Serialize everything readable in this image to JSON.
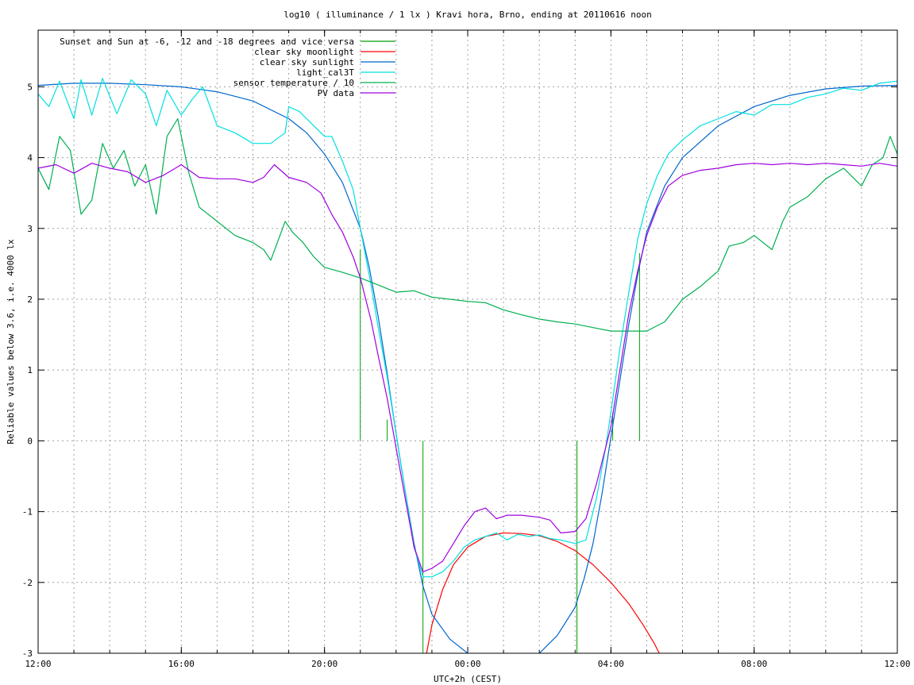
{
  "chart_data": {
    "type": "line",
    "title": "log10 ( illuminance / 1 lx ) Kravi hora, Brno, ending at 20110616 noon",
    "xlabel": "UTC+2h (CEST)",
    "ylabel": "Reliable values below 3.6, i.e. 4000 lx",
    "x_unit": "hours since 12:00 (2011-06-15)",
    "xlim": [
      0,
      24
    ],
    "ylim": [
      -3,
      5.8
    ],
    "x_ticks": [
      {
        "v": 0,
        "label": "12:00"
      },
      {
        "v": 4,
        "label": "16:00"
      },
      {
        "v": 8,
        "label": "20:00"
      },
      {
        "v": 12,
        "label": "00:00"
      },
      {
        "v": 16,
        "label": "04:00"
      },
      {
        "v": 20,
        "label": "08:00"
      },
      {
        "v": 24,
        "label": "12:00"
      }
    ],
    "y_ticks": [
      {
        "v": 5,
        "label": "5"
      },
      {
        "v": 4,
        "label": "4"
      },
      {
        "v": 3,
        "label": "3"
      },
      {
        "v": 2,
        "label": "2"
      },
      {
        "v": 1,
        "label": "1"
      },
      {
        "v": 0,
        "label": "0"
      },
      {
        "v": -1,
        "label": "-1"
      },
      {
        "v": -2,
        "label": "-2"
      },
      {
        "v": -3,
        "label": "-3"
      }
    ],
    "x_minor_step": 1,
    "grid": true,
    "legend_position": "top-left",
    "series": [
      {
        "name": "Sunset and Sun at -6, -12 and -18 degrees and vice versa",
        "color": "#00a000",
        "kind": "vlines",
        "lines": [
          {
            "x": 9.0,
            "y0": 0,
            "y1": 2.7
          },
          {
            "x": 9.75,
            "y0": 0,
            "y1": 0.3
          },
          {
            "x": 10.75,
            "y0": -3,
            "y1": 0
          },
          {
            "x": 15.05,
            "y0": -3,
            "y1": 0
          },
          {
            "x": 16.05,
            "y0": 0,
            "y1": 0.4
          },
          {
            "x": 16.8,
            "y0": 0,
            "y1": 2.65
          }
        ]
      },
      {
        "name": "clear sky moonlight",
        "color": "#ff0000",
        "points": [
          [
            10.85,
            -3.0
          ],
          [
            11.0,
            -2.6
          ],
          [
            11.3,
            -2.1
          ],
          [
            11.6,
            -1.75
          ],
          [
            12.0,
            -1.5
          ],
          [
            12.5,
            -1.35
          ],
          [
            13.0,
            -1.3
          ],
          [
            13.5,
            -1.31
          ],
          [
            14.0,
            -1.34
          ],
          [
            14.5,
            -1.42
          ],
          [
            15.0,
            -1.55
          ],
          [
            15.5,
            -1.75
          ],
          [
            16.0,
            -2.0
          ],
          [
            16.5,
            -2.3
          ],
          [
            16.9,
            -2.6
          ],
          [
            17.2,
            -2.85
          ],
          [
            17.35,
            -3.0
          ]
        ]
      },
      {
        "name": "clear sky sunlight",
        "color": "#0066cc",
        "points": [
          [
            0,
            5.02
          ],
          [
            1,
            5.05
          ],
          [
            2,
            5.05
          ],
          [
            3,
            5.03
          ],
          [
            4,
            5.0
          ],
          [
            5,
            4.93
          ],
          [
            6,
            4.8
          ],
          [
            7,
            4.55
          ],
          [
            7.5,
            4.35
          ],
          [
            8,
            4.05
          ],
          [
            8.5,
            3.65
          ],
          [
            9,
            3.0
          ],
          [
            9.25,
            2.45
          ],
          [
            9.5,
            1.75
          ],
          [
            9.75,
            0.95
          ],
          [
            10,
            0.1
          ],
          [
            10.25,
            -0.7
          ],
          [
            10.5,
            -1.45
          ],
          [
            10.75,
            -2.05
          ],
          [
            11,
            -2.45
          ],
          [
            11.5,
            -2.8
          ],
          [
            12,
            -3.0
          ],
          [
            12.5,
            -3.15
          ],
          [
            13,
            -3.2
          ],
          [
            13.5,
            -3.15
          ],
          [
            14,
            -3.0
          ],
          [
            14.5,
            -2.75
          ],
          [
            15,
            -2.35
          ],
          [
            15.25,
            -1.95
          ],
          [
            15.5,
            -1.45
          ],
          [
            15.75,
            -0.75
          ],
          [
            16,
            0.05
          ],
          [
            16.25,
            0.85
          ],
          [
            16.5,
            1.65
          ],
          [
            16.75,
            2.35
          ],
          [
            17,
            2.95
          ],
          [
            17.5,
            3.6
          ],
          [
            18,
            4.0
          ],
          [
            19,
            4.45
          ],
          [
            20,
            4.72
          ],
          [
            21,
            4.88
          ],
          [
            22,
            4.97
          ],
          [
            23,
            5.01
          ],
          [
            24,
            5.02
          ]
        ]
      },
      {
        "name": "light_cal3T",
        "color": "#00e0e0",
        "points": [
          [
            0,
            4.9
          ],
          [
            0.3,
            4.72
          ],
          [
            0.6,
            5.08
          ],
          [
            1.0,
            4.55
          ],
          [
            1.2,
            5.1
          ],
          [
            1.5,
            4.6
          ],
          [
            1.8,
            5.12
          ],
          [
            2.2,
            4.62
          ],
          [
            2.6,
            5.1
          ],
          [
            3.0,
            4.9
          ],
          [
            3.3,
            4.45
          ],
          [
            3.6,
            4.95
          ],
          [
            4.0,
            4.6
          ],
          [
            4.3,
            4.82
          ],
          [
            4.6,
            5.0
          ],
          [
            5.0,
            4.45
          ],
          [
            5.5,
            4.35
          ],
          [
            6.0,
            4.2
          ],
          [
            6.5,
            4.2
          ],
          [
            6.9,
            4.35
          ],
          [
            7.0,
            4.72
          ],
          [
            7.3,
            4.65
          ],
          [
            7.7,
            4.45
          ],
          [
            8.0,
            4.3
          ],
          [
            8.2,
            4.3
          ],
          [
            8.5,
            3.95
          ],
          [
            8.8,
            3.55
          ],
          [
            9.0,
            3.0
          ],
          [
            9.3,
            2.2
          ],
          [
            9.5,
            1.6
          ],
          [
            9.75,
            0.9
          ],
          [
            10.0,
            0.1
          ],
          [
            10.25,
            -0.7
          ],
          [
            10.5,
            -1.5
          ],
          [
            10.75,
            -1.92
          ],
          [
            11.0,
            -1.92
          ],
          [
            11.3,
            -1.85
          ],
          [
            11.6,
            -1.7
          ],
          [
            11.9,
            -1.5
          ],
          [
            12.2,
            -1.4
          ],
          [
            12.5,
            -1.35
          ],
          [
            12.8,
            -1.3
          ],
          [
            13.1,
            -1.4
          ],
          [
            13.4,
            -1.32
          ],
          [
            13.7,
            -1.35
          ],
          [
            14.0,
            -1.33
          ],
          [
            14.3,
            -1.38
          ],
          [
            14.6,
            -1.4
          ],
          [
            15.0,
            -1.45
          ],
          [
            15.3,
            -1.4
          ],
          [
            15.6,
            -0.8
          ],
          [
            15.85,
            -0.1
          ],
          [
            16.0,
            0.4
          ],
          [
            16.25,
            1.3
          ],
          [
            16.5,
            2.1
          ],
          [
            16.75,
            2.85
          ],
          [
            17.0,
            3.35
          ],
          [
            17.3,
            3.75
          ],
          [
            17.6,
            4.05
          ],
          [
            18.0,
            4.25
          ],
          [
            18.5,
            4.45
          ],
          [
            19.0,
            4.55
          ],
          [
            19.5,
            4.65
          ],
          [
            20.0,
            4.6
          ],
          [
            20.5,
            4.75
          ],
          [
            21.0,
            4.75
          ],
          [
            21.5,
            4.85
          ],
          [
            22.0,
            4.9
          ],
          [
            22.5,
            4.98
          ],
          [
            23.0,
            4.95
          ],
          [
            23.5,
            5.05
          ],
          [
            24.0,
            5.08
          ]
        ]
      },
      {
        "name": "sensor temperature / 10",
        "color": "#00b050",
        "points": [
          [
            0,
            3.85
          ],
          [
            0.3,
            3.55
          ],
          [
            0.6,
            4.3
          ],
          [
            0.9,
            4.1
          ],
          [
            1.2,
            3.2
          ],
          [
            1.5,
            3.4
          ],
          [
            1.8,
            4.2
          ],
          [
            2.1,
            3.85
          ],
          [
            2.4,
            4.1
          ],
          [
            2.7,
            3.6
          ],
          [
            3.0,
            3.9
          ],
          [
            3.3,
            3.2
          ],
          [
            3.6,
            4.3
          ],
          [
            3.9,
            4.55
          ],
          [
            4.2,
            3.8
          ],
          [
            4.5,
            3.3
          ],
          [
            5.0,
            3.1
          ],
          [
            5.5,
            2.9
          ],
          [
            6.0,
            2.8
          ],
          [
            6.3,
            2.7
          ],
          [
            6.5,
            2.55
          ],
          [
            6.9,
            3.1
          ],
          [
            7.1,
            2.95
          ],
          [
            7.4,
            2.8
          ],
          [
            7.7,
            2.6
          ],
          [
            8.0,
            2.45
          ],
          [
            8.5,
            2.38
          ],
          [
            9.0,
            2.3
          ],
          [
            9.5,
            2.2
          ],
          [
            10.0,
            2.1
          ],
          [
            10.5,
            2.12
          ],
          [
            11.0,
            2.03
          ],
          [
            11.5,
            2.0
          ],
          [
            12.0,
            1.97
          ],
          [
            12.5,
            1.95
          ],
          [
            13.0,
            1.85
          ],
          [
            13.5,
            1.78
          ],
          [
            14.0,
            1.72
          ],
          [
            14.5,
            1.68
          ],
          [
            15.0,
            1.65
          ],
          [
            15.5,
            1.6
          ],
          [
            16.0,
            1.55
          ],
          [
            16.5,
            1.55
          ],
          [
            17.0,
            1.55
          ],
          [
            17.5,
            1.68
          ],
          [
            18.0,
            2.0
          ],
          [
            18.5,
            2.18
          ],
          [
            19.0,
            2.4
          ],
          [
            19.3,
            2.75
          ],
          [
            19.7,
            2.8
          ],
          [
            20.0,
            2.9
          ],
          [
            20.5,
            2.7
          ],
          [
            20.8,
            3.1
          ],
          [
            21.0,
            3.3
          ],
          [
            21.5,
            3.45
          ],
          [
            22.0,
            3.7
          ],
          [
            22.5,
            3.85
          ],
          [
            23.0,
            3.6
          ],
          [
            23.3,
            3.9
          ],
          [
            23.6,
            4.0
          ],
          [
            23.8,
            4.3
          ],
          [
            24.0,
            4.05
          ]
        ]
      },
      {
        "name": "PV data",
        "color": "#a000e0",
        "points": [
          [
            0,
            3.85
          ],
          [
            0.5,
            3.9
          ],
          [
            1.0,
            3.78
          ],
          [
            1.5,
            3.92
          ],
          [
            2.0,
            3.85
          ],
          [
            2.5,
            3.8
          ],
          [
            3.0,
            3.65
          ],
          [
            3.5,
            3.75
          ],
          [
            4.0,
            3.9
          ],
          [
            4.5,
            3.72
          ],
          [
            5.0,
            3.7
          ],
          [
            5.5,
            3.7
          ],
          [
            6.0,
            3.65
          ],
          [
            6.3,
            3.72
          ],
          [
            6.6,
            3.9
          ],
          [
            7.0,
            3.72
          ],
          [
            7.5,
            3.65
          ],
          [
            7.9,
            3.5
          ],
          [
            8.2,
            3.2
          ],
          [
            8.5,
            2.95
          ],
          [
            8.8,
            2.6
          ],
          [
            9.0,
            2.3
          ],
          [
            9.3,
            1.7
          ],
          [
            9.5,
            1.2
          ],
          [
            9.75,
            0.6
          ],
          [
            10.0,
            -0.1
          ],
          [
            10.25,
            -0.8
          ],
          [
            10.5,
            -1.5
          ],
          [
            10.75,
            -1.85
          ],
          [
            11.0,
            -1.8
          ],
          [
            11.3,
            -1.7
          ],
          [
            11.6,
            -1.45
          ],
          [
            11.9,
            -1.2
          ],
          [
            12.2,
            -1.0
          ],
          [
            12.5,
            -0.95
          ],
          [
            12.8,
            -1.1
          ],
          [
            13.1,
            -1.05
          ],
          [
            13.5,
            -1.05
          ],
          [
            14.0,
            -1.08
          ],
          [
            14.3,
            -1.12
          ],
          [
            14.6,
            -1.3
          ],
          [
            15.0,
            -1.28
          ],
          [
            15.3,
            -1.1
          ],
          [
            15.6,
            -0.6
          ],
          [
            15.85,
            -0.1
          ],
          [
            16.0,
            0.2
          ],
          [
            16.25,
            1.0
          ],
          [
            16.5,
            1.8
          ],
          [
            16.75,
            2.4
          ],
          [
            17.0,
            2.9
          ],
          [
            17.3,
            3.3
          ],
          [
            17.6,
            3.6
          ],
          [
            18.0,
            3.75
          ],
          [
            18.5,
            3.82
          ],
          [
            19.0,
            3.85
          ],
          [
            19.5,
            3.9
          ],
          [
            20.0,
            3.92
          ],
          [
            20.5,
            3.9
          ],
          [
            21.0,
            3.92
          ],
          [
            21.5,
            3.9
          ],
          [
            22.0,
            3.92
          ],
          [
            22.5,
            3.9
          ],
          [
            23.0,
            3.88
          ],
          [
            23.5,
            3.92
          ],
          [
            24.0,
            3.88
          ]
        ]
      }
    ]
  }
}
